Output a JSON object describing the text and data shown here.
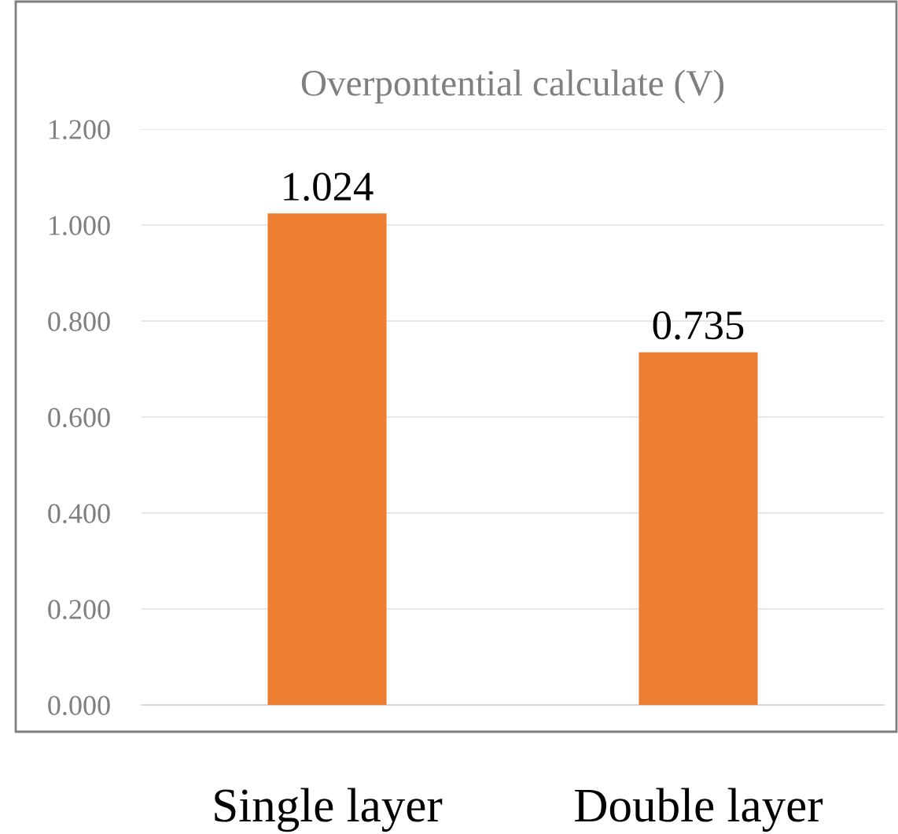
{
  "chart_data": {
    "type": "bar",
    "title": "Overpontential calculate (V)",
    "categories": [
      "Single layer",
      "Double layer"
    ],
    "values": [
      1.024,
      0.735
    ],
    "color": "#ed7d31",
    "ylim": [
      0,
      1.2
    ],
    "yticks": [
      {
        "value": 0,
        "label": "0.000"
      },
      {
        "value": 0.2,
        "label": "0.200"
      },
      {
        "value": 0.4,
        "label": "0.400"
      },
      {
        "value": 0.6,
        "label": "0.600"
      },
      {
        "value": 0.8,
        "label": "0.800"
      },
      {
        "value": 1.0,
        "label": "1.000"
      },
      {
        "value": 1.2,
        "label": "1.200"
      }
    ],
    "grid": "y",
    "data_labels": true
  }
}
